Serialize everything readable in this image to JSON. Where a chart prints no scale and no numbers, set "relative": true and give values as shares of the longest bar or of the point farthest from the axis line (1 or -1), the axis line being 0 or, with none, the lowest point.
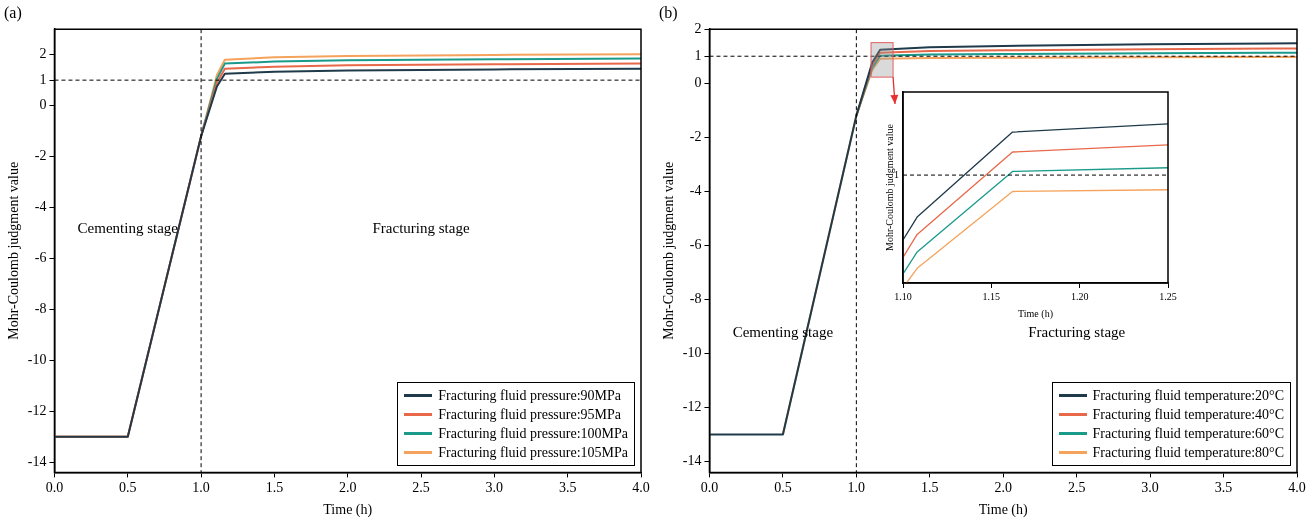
{
  "chart_data": [
    {
      "type": "line",
      "title": "(a)",
      "xlabel": "Time (h)",
      "ylabel": "Mohr-Coulomb judgment value",
      "x": [
        0,
        0.5,
        1.0,
        1.108,
        1.162,
        1.5,
        2,
        3,
        4
      ],
      "series": [
        {
          "name": "Fracturing fluid pressure:90MPa",
          "color": "#1f3a4a",
          "values": [
            -13,
            -13,
            -1.2,
            0.75,
            1.25,
            1.33,
            1.38,
            1.42,
            1.45
          ]
        },
        {
          "name": "Fracturing fluid pressure:95MPa",
          "color": "#e8684a",
          "values": [
            -13,
            -13,
            -1.2,
            0.9,
            1.45,
            1.53,
            1.58,
            1.62,
            1.65
          ]
        },
        {
          "name": "Fracturing fluid pressure:100MPa",
          "color": "#1a9a8a",
          "values": [
            null,
            null,
            -1.2,
            1.05,
            1.65,
            1.73,
            1.78,
            1.82,
            1.85
          ]
        },
        {
          "name": "Fracturing fluid pressure:105MPa",
          "color": "#f5a35c",
          "values": [
            -13,
            -13,
            -1.2,
            1.2,
            1.8,
            1.9,
            1.95,
            1.99,
            2.02
          ]
        }
      ],
      "xlim": [
        0,
        4
      ],
      "xticks": [
        {
          "value": 0,
          "label": "0.0"
        },
        {
          "value": 0.5,
          "label": "0.5"
        },
        {
          "value": 1,
          "label": "1.0"
        },
        {
          "value": 1.5,
          "label": "1.5"
        },
        {
          "value": 2,
          "label": "2.0"
        },
        {
          "value": 2.5,
          "label": "2.5"
        },
        {
          "value": 3,
          "label": "3.0"
        },
        {
          "value": 3.5,
          "label": "3.5"
        },
        {
          "value": 4,
          "label": "4.0"
        }
      ],
      "ylim": [
        -14.4,
        3
      ],
      "yticks": [
        -14,
        -12,
        -10,
        -8,
        -6,
        -4,
        -2,
        0,
        1,
        2
      ],
      "ref_lines": [
        {
          "axis": "x",
          "value": 1,
          "line_style": "dashed"
        },
        {
          "axis": "y",
          "value": 1,
          "line_style": "dashed"
        }
      ],
      "annotations": [
        "Cementing stage",
        "Fracturing stage"
      ],
      "legend": "bottom right",
      "grid": false,
      "marker": "none",
      "line_style": "solid"
    },
    {
      "type": "line",
      "title": "(b)",
      "xlabel": "Time (h)",
      "ylabel": "Mohr-Coulomb judgment value",
      "x": [
        0,
        0.5,
        1.0,
        1.108,
        1.162,
        1.5,
        2,
        3,
        4
      ],
      "series": [
        {
          "name": "Fracturing fluid temperature:20°C",
          "color": "#1f3a4a",
          "values": [
            -13,
            -13,
            -1.2,
            0.77,
            1.24,
            1.33,
            1.38,
            1.44,
            1.48
          ]
        },
        {
          "name": "Fracturing fluid temperature:40°C",
          "color": "#e8684a",
          "values": [
            null,
            null,
            -1.2,
            0.68,
            1.13,
            1.19,
            1.22,
            1.26,
            1.29
          ]
        },
        {
          "name": "Fracturing fluid temperature:60°C",
          "color": "#1a9a8a",
          "values": [
            null,
            null,
            -1.2,
            0.58,
            1.02,
            1.06,
            1.08,
            1.11,
            1.13
          ]
        },
        {
          "name": "Fracturing fluid temperature:80°C",
          "color": "#f5a35c",
          "values": [
            null,
            -13,
            -1.2,
            0.49,
            0.91,
            0.93,
            0.94,
            0.96,
            0.97
          ]
        }
      ],
      "xlim": [
        0,
        4
      ],
      "xticks": [
        {
          "value": 0,
          "label": "0.0"
        },
        {
          "value": 0.5,
          "label": "0.5"
        },
        {
          "value": 1,
          "label": "1.0"
        },
        {
          "value": 1.5,
          "label": "1.5"
        },
        {
          "value": 2,
          "label": "2.0"
        },
        {
          "value": 2.5,
          "label": "2.5"
        },
        {
          "value": 3,
          "label": "3.0"
        },
        {
          "value": 3.5,
          "label": "3.5"
        },
        {
          "value": 4,
          "label": "4.0"
        }
      ],
      "ylim": [
        -14.4,
        2
      ],
      "yticks": [
        -14,
        -12,
        -10,
        -8,
        -6,
        -4,
        -2,
        0,
        1,
        2
      ],
      "ref_lines": [
        {
          "axis": "x",
          "value": 1,
          "line_style": "dashed"
        },
        {
          "axis": "y",
          "value": 1,
          "line_style": "dashed"
        }
      ],
      "annotations": [
        "Cementing stage",
        "Fracturing stage"
      ],
      "legend": "bottom right",
      "grid": false,
      "marker": "none",
      "line_style": "solid"
    },
    {
      "type": "line",
      "xlabel": "Time (h)",
      "ylabel": "Mohr-Coulomb judgment value",
      "x": [
        1.1,
        1.108,
        1.162,
        1.25
      ],
      "series": [
        {
          "color": "#1f3a4a",
          "values": [
            0.27,
            0.414,
            0.948,
            1.0
          ]
        },
        {
          "color": "#e8684a",
          "values": [
            0.161,
            0.305,
            0.823,
            0.868
          ]
        },
        {
          "color": "#1a9a8a",
          "values": [
            0.057,
            0.195,
            0.701,
            0.724
          ]
        },
        {
          "color": "#f5a35c",
          "x": [
            1.102,
            1.108,
            1.162,
            1.25
          ],
          "values": [
            0,
            0.092,
            0.575,
            0.586
          ]
        }
      ],
      "relative": true,
      "xlim": [
        1.1,
        1.25
      ],
      "xticks": [
        {
          "value": 1.1,
          "label": "1.10"
        },
        {
          "value": 1.15,
          "label": "1.15"
        },
        {
          "value": 1.2,
          "label": "1.20"
        },
        {
          "value": 1.25,
          "label": "1.25"
        }
      ],
      "ref_lines": [
        {
          "axis": "y",
          "value": 0.678,
          "label": "1",
          "line_style": "dashed"
        }
      ],
      "grid": false,
      "marker": "none",
      "line_style": "solid"
    }
  ]
}
